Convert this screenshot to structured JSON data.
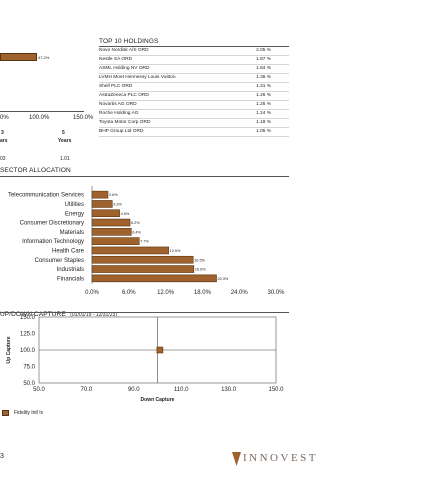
{
  "top_chart": {
    "bar_label": "47.2%",
    "axis_ticks": [
      "0%",
      "100.0%",
      "150.0%"
    ],
    "period_labels": [
      "3",
      "5"
    ],
    "period_unit": "Years",
    "period_unit_cut": "ars",
    "stat_left": "03",
    "stat_right": "1.01"
  },
  "holdings": {
    "title": "TOP 10 HOLDINGS",
    "items": [
      {
        "name": "Novo Nordisk A/S ORD",
        "pct": "2.05 %"
      },
      {
        "name": "Nestle SA ORD",
        "pct": "1.87 %"
      },
      {
        "name": "ASML Holding NV ORD",
        "pct": "1.84 %"
      },
      {
        "name": "LVMH Moet Hennessy Louis Vuitton",
        "pct": "1.36 %"
      },
      {
        "name": "Shell PLC ORD",
        "pct": "1.31 %"
      },
      {
        "name": "AstraZeneca PLC ORD",
        "pct": "1.26 %"
      },
      {
        "name": "Novartis AG ORD",
        "pct": "1.25 %"
      },
      {
        "name": "Roche Holding AG",
        "pct": "1.24 %"
      },
      {
        "name": "Toyota Motor Corp ORD",
        "pct": "1.18 %"
      },
      {
        "name": "BHP Group Ltd ORD",
        "pct": "1.05 %"
      }
    ]
  },
  "sector": {
    "title": "SECTOR ALLOCATION"
  },
  "updown": {
    "title": "UP/DOWN CAPTURE",
    "period": "(01/01/19 - 12/31/23)"
  },
  "legend": {
    "label": "Fidelity Intl Ix"
  },
  "footer": {
    "page_number": "3",
    "brand": "INNOVEST"
  },
  "colors": {
    "bar_fill": "#a0622d",
    "bar_stroke": "#5a3512",
    "rule": "#555555",
    "brand": "#7a6a62"
  },
  "chart_data": [
    {
      "type": "bar",
      "orientation": "horizontal",
      "categories": [
        "Telecommunication Services",
        "Utilities",
        "Energy",
        "Consumer Discretionary",
        "Materials",
        "Information Technology",
        "Health Care",
        "Consumer Staples",
        "Industrials",
        "Financials"
      ],
      "values": [
        2.6,
        3.3,
        4.5,
        6.2,
        6.4,
        7.7,
        12.5,
        16.5,
        16.6,
        20.3
      ],
      "data_labels": [
        "2.6%",
        "3.3%",
        "4.5%",
        "6.2%",
        "6.4%",
        "7.7%",
        "12.5%",
        "16.5%",
        "16.6%",
        "20.3%"
      ],
      "xlim": [
        0,
        30
      ],
      "xticks": [
        "0.0%",
        "6.0%",
        "12.0%",
        "18.0%",
        "24.0%",
        "30.0%"
      ],
      "grid": false
    },
    {
      "type": "scatter",
      "points": [
        {
          "x": 101,
          "y": 100,
          "name": "Fidelity Intl Ix"
        }
      ],
      "xlabel": "Down Capture",
      "ylabel": "Up Capture",
      "xlim": [
        50,
        150
      ],
      "ylim": [
        50,
        150
      ],
      "xticks": [
        "50.0",
        "70.0",
        "90.0",
        "110.0",
        "130.0",
        "150.0"
      ],
      "yticks": [
        "150.0",
        "125.0",
        "100.0",
        "75.0",
        "50.0"
      ],
      "reference_lines": {
        "x": 100,
        "y": 100
      }
    }
  ]
}
